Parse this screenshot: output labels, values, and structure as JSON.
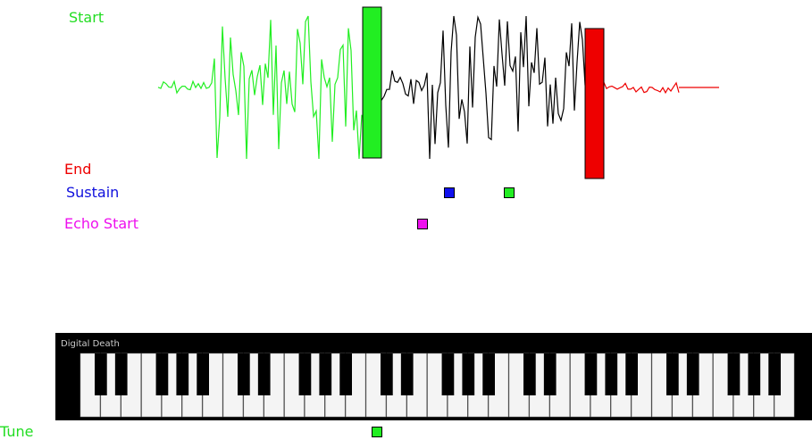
{
  "labels": {
    "start": "Start",
    "end": "End",
    "sustain": "Sustain",
    "echo_start": "Echo Start",
    "tune": "Tune"
  },
  "keyboard": {
    "title": "Digital Death"
  }
}
